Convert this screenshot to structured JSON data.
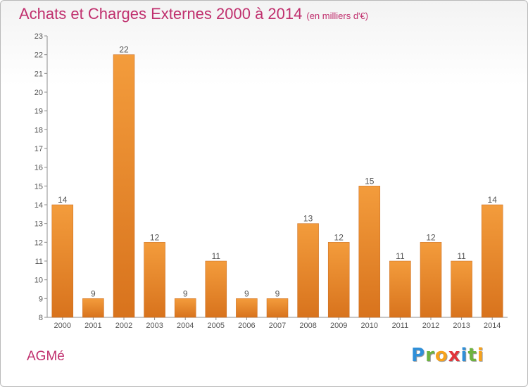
{
  "title": "Achats et Charges Externes 2000 à 2014",
  "subtitle": "(en milliers d'€)",
  "city": "AGMé",
  "logo": {
    "letters": [
      "P",
      "r",
      "o",
      "x",
      "i",
      "t",
      "i"
    ],
    "colors": [
      "#2f8fd8",
      "#6cb33f",
      "#f7a21b",
      "#e2343b",
      "#2f8fd8",
      "#6cb33f",
      "#f7a21b"
    ]
  },
  "chart_data": {
    "type": "bar",
    "title": "Achats et Charges Externes 2000 à 2014",
    "subtitle": "(en milliers d'€)",
    "categories": [
      "2000",
      "2001",
      "2002",
      "2003",
      "2004",
      "2005",
      "2006",
      "2007",
      "2008",
      "2009",
      "2010",
      "2011",
      "2012",
      "2013",
      "2014"
    ],
    "values": [
      14,
      9,
      22,
      12,
      9,
      11,
      9,
      9,
      13,
      12,
      15,
      11,
      12,
      11,
      14
    ],
    "ylim": [
      8,
      23
    ],
    "yticks": [
      8,
      9,
      10,
      11,
      12,
      13,
      14,
      15,
      16,
      17,
      18,
      19,
      20,
      21,
      22,
      23
    ],
    "grid": false,
    "bar_color": "#f39c3c",
    "bar_color_dark": "#d8731d",
    "title_color": "#c0306e"
  }
}
